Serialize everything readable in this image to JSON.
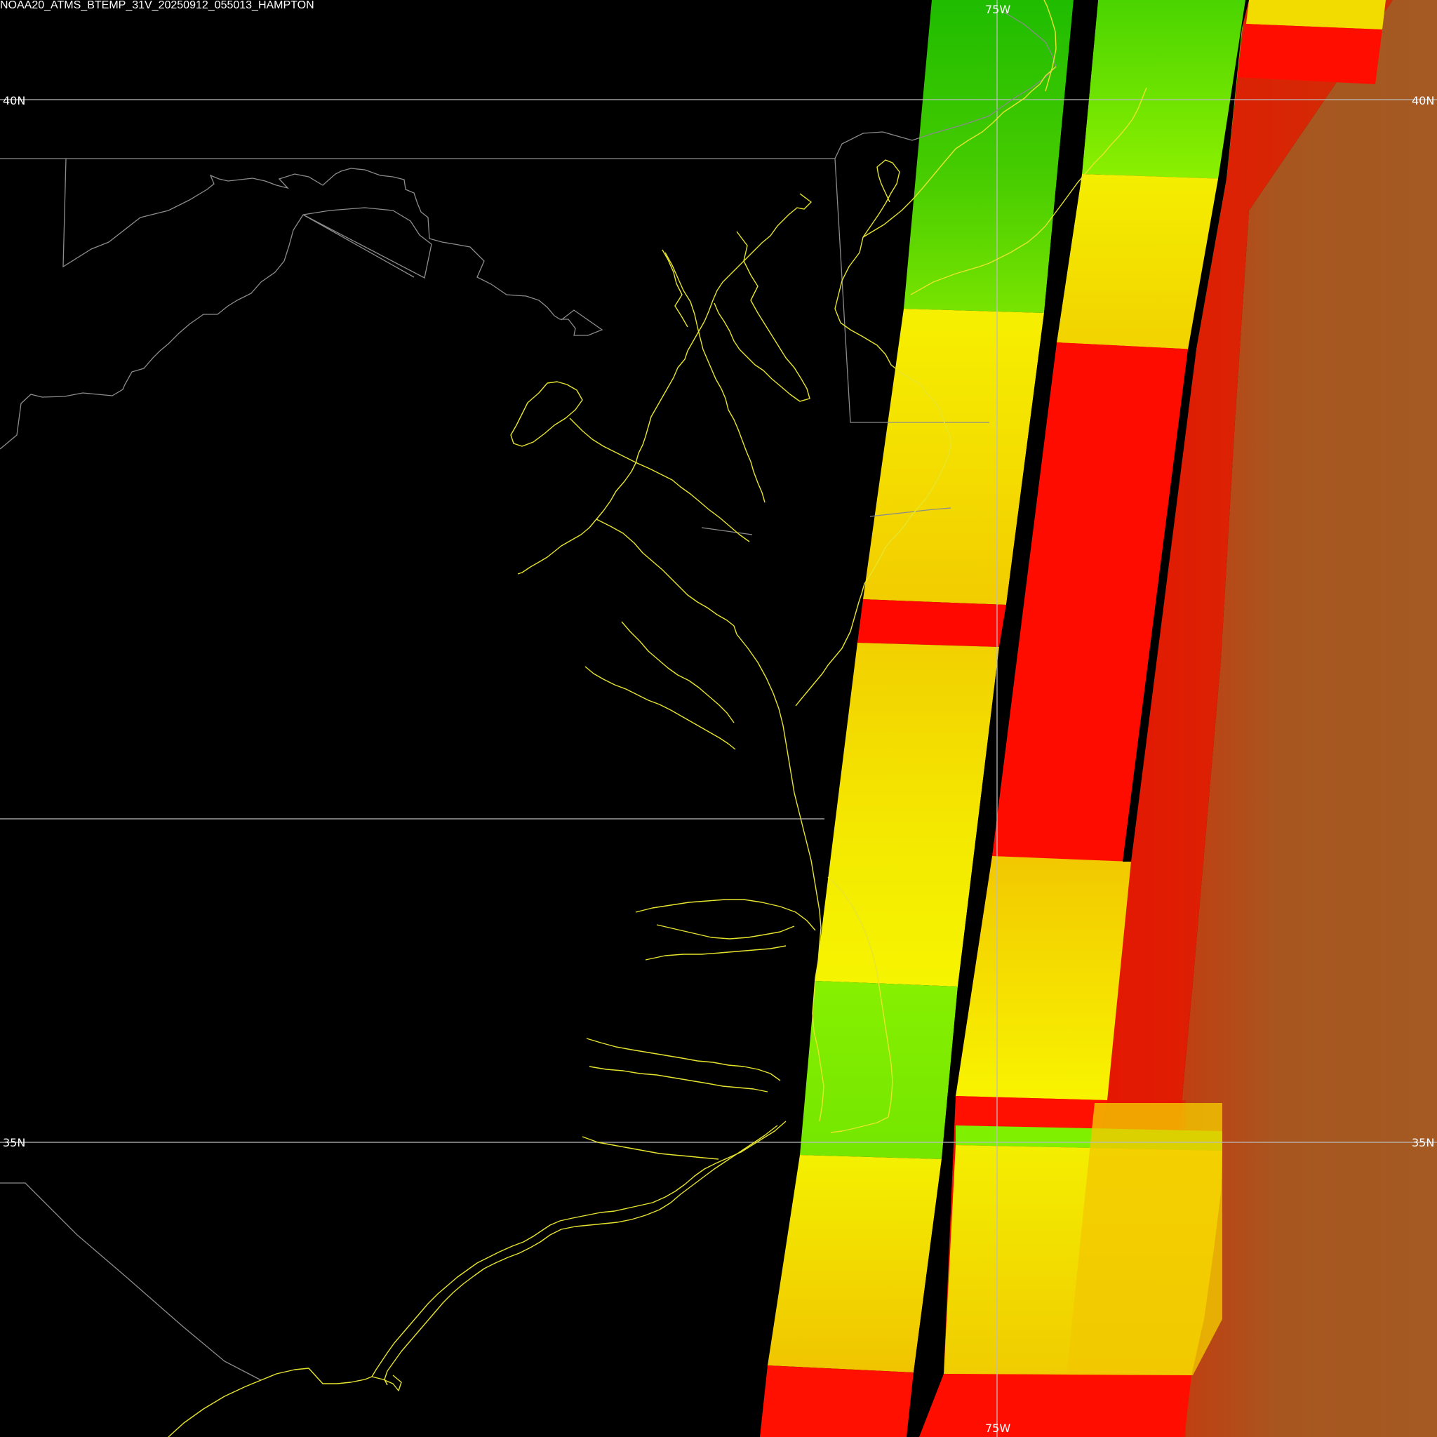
{
  "title": "NOAA20_ATMS_BTEMP_31V_20250912_055013_HAMPTON",
  "grid_labels": {
    "lat_top": "40N",
    "lat_bottom": "35N",
    "lon_top": "75W",
    "lon_bottom": "75W"
  },
  "colors": {
    "background": "#000000",
    "gridline": "#bdbdbd",
    "state_border": "#8c8c8c",
    "coastline": "#e7e42e",
    "swath_red": "#ff0a00",
    "swath_yellow": "#f4ea00",
    "swath_green": "#7ef000",
    "swath_brown": "#a05a28"
  }
}
